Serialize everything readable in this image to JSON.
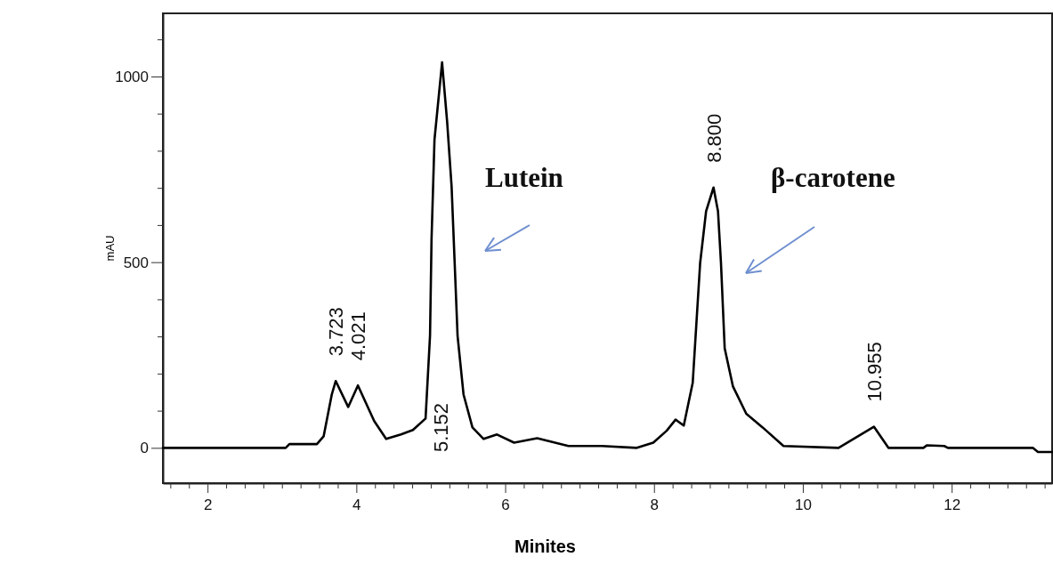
{
  "chart_data": {
    "type": "line",
    "xlabel": "Minites",
    "ylabel": "mAU",
    "xlim": [
      1.4,
      13.35
    ],
    "ylim": [
      -95,
      1170
    ],
    "xticks": [
      {
        "value": 1.5,
        "label": null
      },
      {
        "value": 1.75,
        "label": null
      },
      2,
      {
        "value": 2.25,
        "label": null
      },
      {
        "value": 2.5,
        "label": null
      },
      {
        "value": 2.75,
        "label": null
      },
      {
        "value": 3,
        "label": null
      },
      {
        "value": 3.25,
        "label": null
      },
      {
        "value": 3.5,
        "label": null
      },
      {
        "value": 3.75,
        "label": null
      },
      4,
      {
        "value": 4.25,
        "label": null
      },
      {
        "value": 4.5,
        "label": null
      },
      {
        "value": 4.75,
        "label": null
      },
      {
        "value": 5,
        "label": null
      },
      {
        "value": 5.25,
        "label": null
      },
      {
        "value": 5.5,
        "label": null
      },
      {
        "value": 5.75,
        "label": null
      },
      6,
      {
        "value": 6.25,
        "label": null
      },
      {
        "value": 6.5,
        "label": null
      },
      {
        "value": 6.75,
        "label": null
      },
      {
        "value": 7,
        "label": null
      },
      {
        "value": 7.25,
        "label": null
      },
      {
        "value": 7.5,
        "label": null
      },
      {
        "value": 7.75,
        "label": null
      },
      8,
      {
        "value": 8.25,
        "label": null
      },
      {
        "value": 8.5,
        "label": null
      },
      {
        "value": 8.75,
        "label": null
      },
      {
        "value": 9,
        "label": null
      },
      {
        "value": 9.25,
        "label": null
      },
      {
        "value": 9.5,
        "label": null
      },
      {
        "value": 9.75,
        "label": null
      },
      10,
      {
        "value": 10.25,
        "label": null
      },
      {
        "value": 10.5,
        "label": null
      },
      {
        "value": 10.75,
        "label": null
      },
      {
        "value": 11,
        "label": null
      },
      {
        "value": 11.25,
        "label": null
      },
      {
        "value": 11.5,
        "label": null
      },
      {
        "value": 11.75,
        "label": null
      },
      12,
      {
        "value": 12.25,
        "label": null
      },
      {
        "value": 12.5,
        "label": null
      },
      {
        "value": 12.75,
        "label": null
      },
      {
        "value": 13,
        "label": null
      },
      {
        "value": 13.25,
        "label": null
      }
    ],
    "yticks": [
      0,
      {
        "value": 100,
        "label": null
      },
      {
        "value": 200,
        "label": null
      },
      {
        "value": 300,
        "label": null
      },
      {
        "value": 400,
        "label": null
      },
      500,
      {
        "value": 600,
        "label": null
      },
      {
        "value": 700,
        "label": null
      },
      {
        "value": 800,
        "label": null
      },
      {
        "value": 900,
        "label": null
      },
      1000,
      {
        "value": 1100,
        "label": null
      }
    ],
    "grid": false,
    "marker": "none",
    "line_style": "solid",
    "series": [
      {
        "color": "#000000",
        "x": [
          1.4,
          3.05,
          3.1,
          3.47,
          3.56,
          3.67,
          3.723,
          3.89,
          4.021,
          4.24,
          4.4,
          4.6,
          4.76,
          4.93,
          4.99,
          5.01,
          5.05,
          5.152,
          5.22,
          5.28,
          5.32,
          5.36,
          5.44,
          5.56,
          5.71,
          5.89,
          6.12,
          6.43,
          6.85,
          7.3,
          7.77,
          7.99,
          8.17,
          8.29,
          8.4,
          8.52,
          8.62,
          8.7,
          8.8,
          8.86,
          8.9,
          8.95,
          9.06,
          9.24,
          9.46,
          9.74,
          10.48,
          10.955,
          11.15,
          11.62,
          11.67,
          11.9,
          11.95,
          13.09,
          13.16,
          13.35
        ],
        "values": [
          0,
          0,
          10,
          10,
          31,
          144,
          180,
          110,
          168,
          72,
          24,
          36,
          48,
          79,
          302,
          559,
          830,
          1038,
          878,
          703,
          504,
          302,
          144,
          55,
          24,
          36,
          14,
          26,
          5,
          5,
          0,
          14,
          46,
          76,
          60,
          175,
          498,
          637,
          701,
          637,
          498,
          268,
          166,
          92,
          55,
          5,
          0,
          57,
          0,
          0,
          7,
          5,
          0,
          0,
          -11,
          -11
        ]
      }
    ],
    "annotations": [
      {
        "text": "3.723",
        "x": 3.723,
        "y": 180
      },
      {
        "text": "4.021",
        "x": 4.021,
        "y": 168
      },
      "5.152",
      {
        "text": "8.800",
        "x": 8.8,
        "y": 701
      },
      {
        "text": "10.955",
        "x": 10.955,
        "y": 57
      },
      "Lutein",
      "β-carotene"
    ]
  }
}
